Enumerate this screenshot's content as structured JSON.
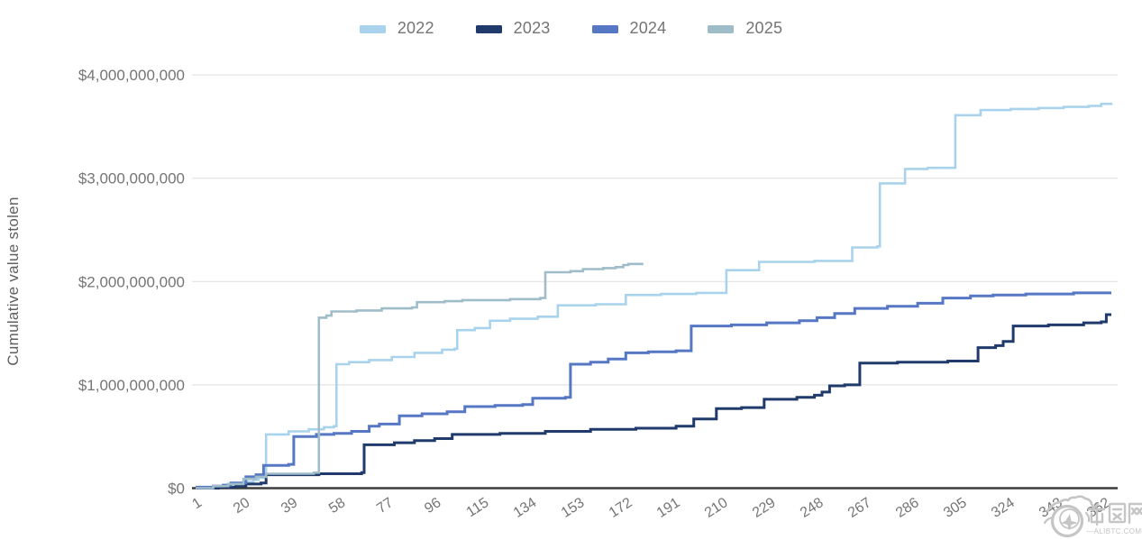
{
  "chart_data": {
    "type": "line",
    "step_interpolation": true,
    "title": "",
    "xlabel": "",
    "ylabel": "Cumulative value stolen",
    "x_unit": "day of year",
    "x_range": [
      1,
      365
    ],
    "x_ticks": [
      1,
      20,
      39,
      58,
      77,
      96,
      115,
      134,
      153,
      172,
      191,
      210,
      229,
      248,
      267,
      286,
      305,
      324,
      343,
      362
    ],
    "ylim_billions": [
      0,
      4
    ],
    "y_tick_values_billions": [
      0,
      1,
      2,
      3,
      4
    ],
    "y_ticks_labels": [
      "$0",
      "$1,000,000,000",
      "$2,000,000,000",
      "$3,000,000,000",
      "$4,000,000,000"
    ],
    "grid": true,
    "legend_position": "top",
    "series": [
      {
        "name": "2022",
        "color": "#a9d3ec",
        "width": 2.6,
        "points_day_billions": [
          [
            1,
            0.01
          ],
          [
            8,
            0.02
          ],
          [
            14,
            0.04
          ],
          [
            20,
            0.06
          ],
          [
            24,
            0.08
          ],
          [
            26,
            0.1
          ],
          [
            28,
            0.15
          ],
          [
            29,
            0.52
          ],
          [
            38,
            0.55
          ],
          [
            46,
            0.57
          ],
          [
            52,
            0.59
          ],
          [
            56,
            0.6
          ],
          [
            57,
            1.2
          ],
          [
            62,
            1.22
          ],
          [
            70,
            1.24
          ],
          [
            79,
            1.27
          ],
          [
            88,
            1.31
          ],
          [
            99,
            1.34
          ],
          [
            104,
            1.35
          ],
          [
            105,
            1.53
          ],
          [
            112,
            1.55
          ],
          [
            118,
            1.62
          ],
          [
            126,
            1.64
          ],
          [
            137,
            1.66
          ],
          [
            145,
            1.77
          ],
          [
            160,
            1.78
          ],
          [
            172,
            1.87
          ],
          [
            186,
            1.88
          ],
          [
            200,
            1.89
          ],
          [
            212,
            2.11
          ],
          [
            225,
            2.19
          ],
          [
            247,
            2.2
          ],
          [
            262,
            2.33
          ],
          [
            272,
            2.34
          ],
          [
            273,
            2.95
          ],
          [
            283,
            3.09
          ],
          [
            292,
            3.1
          ],
          [
            303,
            3.61
          ],
          [
            313,
            3.66
          ],
          [
            325,
            3.67
          ],
          [
            336,
            3.68
          ],
          [
            346,
            3.69
          ],
          [
            356,
            3.7
          ],
          [
            361,
            3.72
          ],
          [
            365,
            3.73
          ]
        ]
      },
      {
        "name": "2023",
        "color": "#1f3a6b",
        "width": 3,
        "points_day_billions": [
          [
            1,
            0.0
          ],
          [
            10,
            0.01
          ],
          [
            17,
            0.02
          ],
          [
            21,
            0.04
          ],
          [
            27,
            0.05
          ],
          [
            29,
            0.13
          ],
          [
            50,
            0.14
          ],
          [
            67,
            0.15
          ],
          [
            68,
            0.42
          ],
          [
            80,
            0.44
          ],
          [
            88,
            0.46
          ],
          [
            96,
            0.48
          ],
          [
            103,
            0.52
          ],
          [
            122,
            0.53
          ],
          [
            140,
            0.55
          ],
          [
            158,
            0.57
          ],
          [
            176,
            0.58
          ],
          [
            192,
            0.6
          ],
          [
            199,
            0.67
          ],
          [
            208,
            0.77
          ],
          [
            218,
            0.78
          ],
          [
            227,
            0.86
          ],
          [
            240,
            0.88
          ],
          [
            247,
            0.9
          ],
          [
            250,
            0.93
          ],
          [
            253,
            0.99
          ],
          [
            259,
            1.0
          ],
          [
            265,
            1.21
          ],
          [
            280,
            1.22
          ],
          [
            300,
            1.23
          ],
          [
            312,
            1.36
          ],
          [
            319,
            1.38
          ],
          [
            322,
            1.42
          ],
          [
            326,
            1.57
          ],
          [
            340,
            1.58
          ],
          [
            354,
            1.6
          ],
          [
            361,
            1.61
          ],
          [
            363,
            1.68
          ],
          [
            365,
            1.68
          ]
        ]
      },
      {
        "name": "2024",
        "color": "#5577c4",
        "width": 3,
        "points_day_billions": [
          [
            1,
            0.01
          ],
          [
            8,
            0.02
          ],
          [
            12,
            0.03
          ],
          [
            15,
            0.05
          ],
          [
            21,
            0.11
          ],
          [
            25,
            0.13
          ],
          [
            28,
            0.22
          ],
          [
            38,
            0.23
          ],
          [
            40,
            0.5
          ],
          [
            49,
            0.52
          ],
          [
            56,
            0.53
          ],
          [
            63,
            0.55
          ],
          [
            70,
            0.6
          ],
          [
            74,
            0.62
          ],
          [
            82,
            0.7
          ],
          [
            91,
            0.72
          ],
          [
            101,
            0.74
          ],
          [
            108,
            0.79
          ],
          [
            120,
            0.8
          ],
          [
            131,
            0.81
          ],
          [
            135,
            0.87
          ],
          [
            148,
            0.88
          ],
          [
            150,
            1.2
          ],
          [
            158,
            1.22
          ],
          [
            165,
            1.25
          ],
          [
            172,
            1.31
          ],
          [
            181,
            1.32
          ],
          [
            192,
            1.33
          ],
          [
            198,
            1.57
          ],
          [
            214,
            1.58
          ],
          [
            228,
            1.6
          ],
          [
            241,
            1.62
          ],
          [
            248,
            1.65
          ],
          [
            255,
            1.69
          ],
          [
            263,
            1.74
          ],
          [
            276,
            1.76
          ],
          [
            288,
            1.79
          ],
          [
            298,
            1.84
          ],
          [
            309,
            1.86
          ],
          [
            318,
            1.87
          ],
          [
            331,
            1.88
          ],
          [
            350,
            1.89
          ],
          [
            365,
            1.89
          ]
        ]
      },
      {
        "name": "2025",
        "color": "#9fbdc9",
        "width": 2.6,
        "points_day_billions": [
          [
            1,
            0.0
          ],
          [
            8,
            0.02
          ],
          [
            14,
            0.04
          ],
          [
            20,
            0.09
          ],
          [
            25,
            0.11
          ],
          [
            29,
            0.14
          ],
          [
            48,
            0.15
          ],
          [
            50,
            1.65
          ],
          [
            53,
            1.67
          ],
          [
            55,
            1.71
          ],
          [
            65,
            1.72
          ],
          [
            75,
            1.74
          ],
          [
            87,
            1.75
          ],
          [
            89,
            1.8
          ],
          [
            100,
            1.81
          ],
          [
            107,
            1.82
          ],
          [
            126,
            1.83
          ],
          [
            138,
            1.84
          ],
          [
            140,
            2.09
          ],
          [
            150,
            2.1
          ],
          [
            155,
            2.12
          ],
          [
            163,
            2.13
          ],
          [
            168,
            2.14
          ],
          [
            171,
            2.16
          ],
          [
            173,
            2.17
          ],
          [
            179,
            2.17
          ]
        ]
      }
    ]
  },
  "colors": {
    "grid": "#e3e3e3",
    "baseline": "#3d3d3d",
    "tick_text": "#757575",
    "axis_title_text": "#5f5f5f",
    "watermark": "#c5c5c5"
  },
  "watermark": {
    "site_name": "币圈网",
    "domain_label": "—ALIBTC.COM—"
  }
}
